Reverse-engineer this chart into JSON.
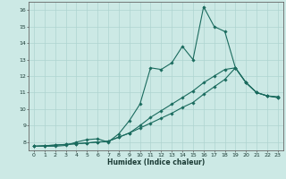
{
  "xlabel": "Humidex (Indice chaleur)",
  "bg_color": "#cce9e5",
  "line_color": "#1a6b5e",
  "grid_color": "#aed4d0",
  "xlim": [
    -0.5,
    23.5
  ],
  "ylim": [
    7.5,
    16.5
  ],
  "xticks": [
    0,
    1,
    2,
    3,
    4,
    5,
    6,
    7,
    8,
    9,
    10,
    11,
    12,
    13,
    14,
    15,
    16,
    17,
    18,
    19,
    20,
    21,
    22,
    23
  ],
  "yticks": [
    8,
    9,
    10,
    11,
    12,
    13,
    14,
    15,
    16
  ],
  "line1_x": [
    0,
    1,
    2,
    3,
    4,
    5,
    6,
    7,
    8,
    9,
    10,
    11,
    12,
    13,
    14,
    15,
    16,
    17,
    18,
    19,
    20,
    21,
    22,
    23
  ],
  "line1_y": [
    7.75,
    7.75,
    7.75,
    7.8,
    8.0,
    8.15,
    8.2,
    8.0,
    8.5,
    9.3,
    10.3,
    12.5,
    12.4,
    12.8,
    13.8,
    13.0,
    16.2,
    15.0,
    14.7,
    12.5,
    11.6,
    11.0,
    10.8,
    10.7
  ],
  "line2_x": [
    0,
    1,
    2,
    3,
    4,
    5,
    6,
    7,
    8,
    9,
    10,
    11,
    12,
    13,
    14,
    15,
    16,
    17,
    18,
    19,
    20,
    21,
    22,
    23
  ],
  "line2_y": [
    7.75,
    7.78,
    7.82,
    7.86,
    7.9,
    7.95,
    8.0,
    8.05,
    8.3,
    8.55,
    8.85,
    9.15,
    9.45,
    9.75,
    10.1,
    10.4,
    10.9,
    11.35,
    11.8,
    12.5,
    11.6,
    11.0,
    10.8,
    10.7
  ],
  "line3_x": [
    0,
    1,
    2,
    3,
    4,
    5,
    6,
    7,
    8,
    9,
    10,
    11,
    12,
    13,
    14,
    15,
    16,
    17,
    18,
    19,
    20,
    21,
    22,
    23
  ],
  "line3_y": [
    7.75,
    7.78,
    7.82,
    7.86,
    7.9,
    7.95,
    8.0,
    8.05,
    8.3,
    8.55,
    9.0,
    9.5,
    9.9,
    10.3,
    10.7,
    11.1,
    11.6,
    12.0,
    12.4,
    12.5,
    11.6,
    11.0,
    10.8,
    10.75
  ]
}
